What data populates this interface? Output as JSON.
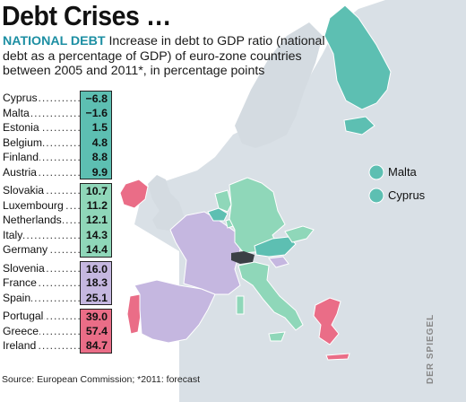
{
  "title": "Debt Crises …",
  "subtitle_lead": "NATIONAL DEBT",
  "subtitle_text": " Increase in debt to GDP ratio (national debt as a percentage of GDP) of euro-zone countries between 2005 and 2011*, in percentage points",
  "colors": {
    "group1": "#5dbfb2",
    "group2": "#8fd7b9",
    "group3": "#c5b7e0",
    "group4": "#ea6d87",
    "land": "#d7dee4",
    "sea": "#eef1f3"
  },
  "groups": [
    {
      "color_key": "group1",
      "rows": [
        {
          "country": "Cyprus",
          "value": "−6.8"
        },
        {
          "country": "Malta",
          "value": "−1.6"
        },
        {
          "country": "Estonia",
          "value": "1.5"
        },
        {
          "country": "Belgium",
          "value": "4.8"
        },
        {
          "country": "Finland",
          "value": "8.8"
        },
        {
          "country": "Austria",
          "value": "9.9"
        }
      ]
    },
    {
      "color_key": "group2",
      "rows": [
        {
          "country": "Slovakia",
          "value": "10.7"
        },
        {
          "country": "Luxembourg",
          "value": "11.2"
        },
        {
          "country": "Netherlands",
          "value": "12.1"
        },
        {
          "country": "Italy",
          "value": "14.3"
        },
        {
          "country": "Germany",
          "value": "14.4"
        }
      ]
    },
    {
      "color_key": "group3",
      "rows": [
        {
          "country": "Slovenia",
          "value": "16.0"
        },
        {
          "country": "France",
          "value": "18.3"
        },
        {
          "country": "Spain",
          "value": "25.1"
        }
      ]
    },
    {
      "color_key": "group4",
      "rows": [
        {
          "country": "Portugal",
          "value": "39.0"
        },
        {
          "country": "Greece",
          "value": "57.4"
        },
        {
          "country": "Ireland",
          "value": "84.7"
        }
      ]
    }
  ],
  "legend": {
    "malta": "Malta",
    "cyprus": "Cyprus"
  },
  "source": "Source: European Commission; *2011: forecast",
  "credit": "DER SPIEGEL"
}
